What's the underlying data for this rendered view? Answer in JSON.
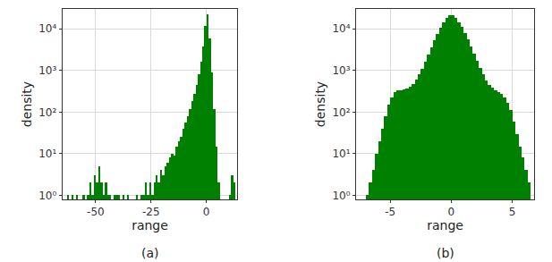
{
  "chart_data": [
    {
      "type": "histogram",
      "subtitle": "(a)",
      "x_label": "range",
      "y_label": "density",
      "color": "#008000",
      "log": "y",
      "grid": true,
      "xlim": [
        -65,
        14
      ],
      "xticks": [
        -50,
        -25,
        0
      ],
      "ylim": [
        0.8,
        30000
      ],
      "yticks": [
        {
          "value": 1,
          "label": "10⁰"
        },
        {
          "value": 10,
          "label": "10¹"
        },
        {
          "value": 100,
          "label": "10²"
        },
        {
          "value": 1000,
          "label": "10³"
        },
        {
          "value": 10000,
          "label": "10⁴"
        }
      ],
      "bins": [
        -63,
        -62,
        -61,
        -60,
        -59,
        -58,
        -57,
        -56,
        -55,
        -54,
        -53,
        -52,
        -51,
        -50,
        -49,
        -48,
        -47,
        -46,
        -45,
        -44,
        -43,
        -42,
        -41,
        -40,
        -39,
        -38,
        -37,
        -36,
        -35,
        -34,
        -33,
        -32,
        -31,
        -30,
        -29,
        -28,
        -27,
        -26,
        -25,
        -24,
        -23,
        -22,
        -21,
        -20,
        -19,
        -18,
        -17,
        -16,
        -15,
        -14,
        -13,
        -12,
        -11,
        -10,
        -9,
        -8,
        -7,
        -6,
        -5,
        -4,
        -3,
        -2,
        -1,
        0,
        1,
        2,
        3,
        4,
        5,
        6,
        7,
        8,
        9,
        10,
        11,
        12,
        13
      ],
      "counts": [
        1,
        0,
        1,
        0,
        1,
        0,
        0,
        1,
        0,
        1,
        2,
        1,
        3,
        2,
        5,
        2,
        1,
        2,
        1,
        1,
        0,
        1,
        1,
        1,
        0,
        1,
        0,
        1,
        0,
        0,
        0,
        1,
        0,
        1,
        1,
        2,
        1,
        2,
        1,
        2,
        3,
        2,
        4,
        3,
        5,
        6,
        8,
        10,
        9,
        15,
        20,
        25,
        40,
        55,
        80,
        120,
        180,
        280,
        450,
        800,
        1600,
        3800,
        12000,
        22000,
        6000,
        900,
        120,
        15,
        2,
        0,
        0,
        0,
        0,
        1,
        3,
        2
      ]
    },
    {
      "type": "histogram",
      "subtitle": "(b)",
      "x_label": "range",
      "y_label": "density",
      "color": "#008000",
      "log": "y",
      "grid": true,
      "xlim": [
        -7.8,
        6.8
      ],
      "xticks": [
        -5,
        0,
        5
      ],
      "ylim": [
        0.8,
        30000
      ],
      "yticks": [
        {
          "value": 1,
          "label": "10⁰"
        },
        {
          "value": 10,
          "label": "10¹"
        },
        {
          "value": 100,
          "label": "10²"
        },
        {
          "value": 1000,
          "label": "10³"
        },
        {
          "value": 10000,
          "label": "10⁴"
        }
      ],
      "bins": [
        -7,
        -6.75,
        -6.5,
        -6.25,
        -6,
        -5.75,
        -5.5,
        -5.25,
        -5,
        -4.75,
        -4.5,
        -4.25,
        -4,
        -3.75,
        -3.5,
        -3.25,
        -3,
        -2.75,
        -2.5,
        -2.25,
        -2,
        -1.75,
        -1.5,
        -1.25,
        -1,
        -0.75,
        -0.5,
        -0.25,
        0,
        0.25,
        0.5,
        0.75,
        1,
        1.25,
        1.5,
        1.75,
        2,
        2.25,
        2.5,
        2.75,
        3,
        3.25,
        3.5,
        3.75,
        4,
        4.25,
        4.5,
        4.75,
        5,
        5.25,
        5.5,
        5.75,
        6,
        6.25,
        6.5
      ],
      "counts": [
        1,
        2,
        4,
        10,
        20,
        40,
        80,
        150,
        230,
        300,
        330,
        340,
        350,
        360,
        400,
        480,
        600,
        800,
        1100,
        1600,
        2400,
        3600,
        5200,
        7500,
        10500,
        14000,
        18000,
        21000,
        21000,
        18500,
        14500,
        11000,
        8000,
        5500,
        3800,
        2500,
        1700,
        1150,
        800,
        580,
        450,
        380,
        330,
        300,
        270,
        230,
        170,
        110,
        60,
        30,
        15,
        8,
        4,
        2
      ]
    }
  ]
}
